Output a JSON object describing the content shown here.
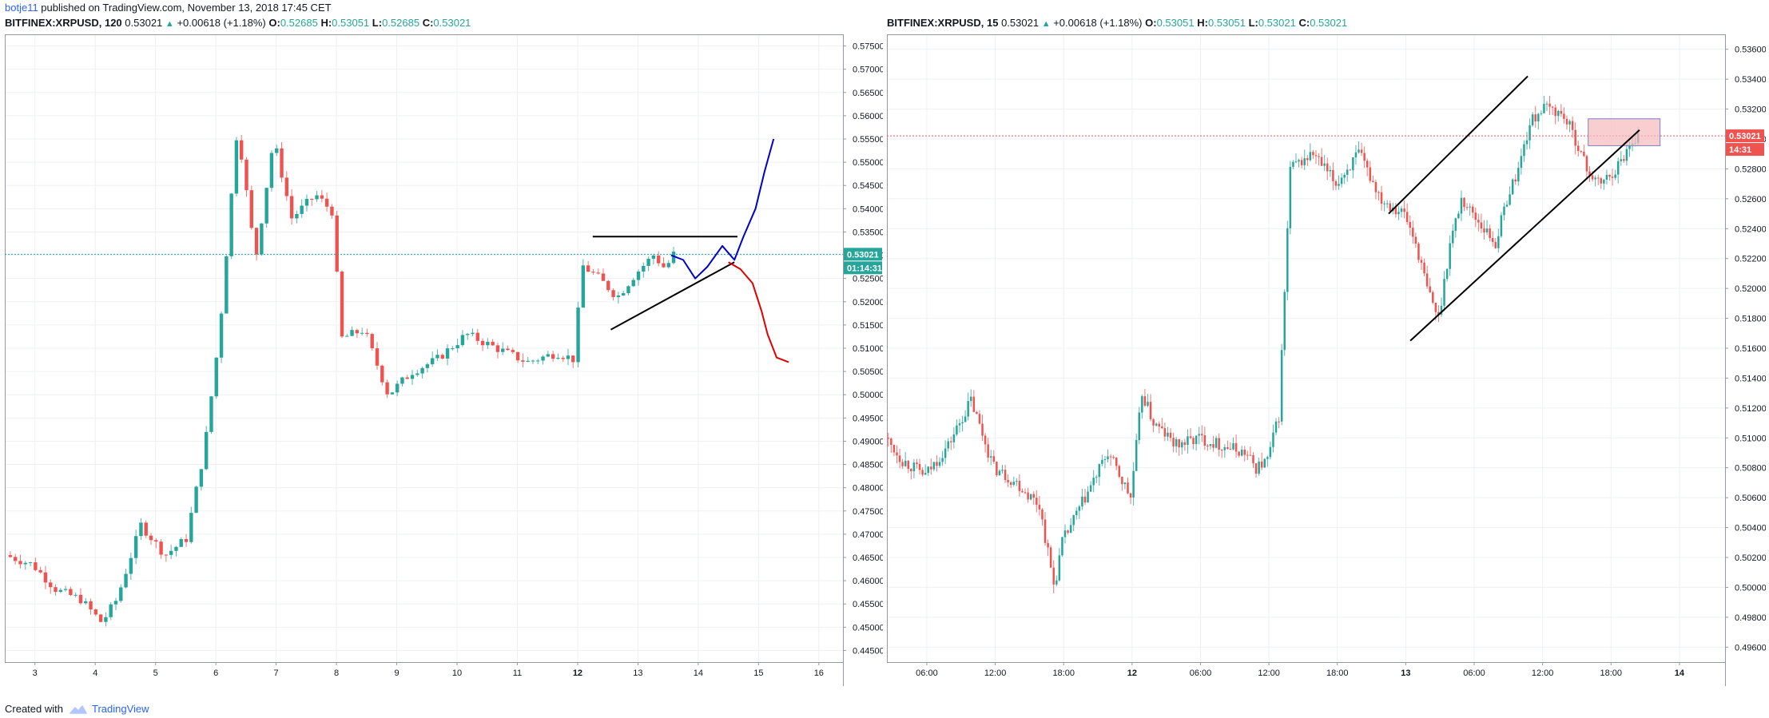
{
  "header": {
    "author": "botje11",
    "published_text": " published on TradingView.com, November 13, 2018 17:45 CET"
  },
  "panes": [
    {
      "symbol": "BITFINEX:XRPUSD",
      "interval": "120",
      "last": "0.53021",
      "change": "+0.00618 (+1.18%)",
      "open": "0.52685",
      "high": "0.53051",
      "low": "0.52685",
      "close": "0.53021",
      "price_tag": "0.53021",
      "countdown": "01:14:31"
    },
    {
      "symbol": "BITFINEX:XRPUSD",
      "interval": "15",
      "last": "0.53021",
      "change": "+0.00618 (+1.18%)",
      "open": "0.53051",
      "high": "0.53051",
      "low": "0.53021",
      "close": "0.53021",
      "price_tag": "0.53021",
      "countdown": "14:31"
    }
  ],
  "footer": {
    "created_with": "Created with",
    "brand": "TradingView"
  },
  "colors": {
    "up": "#26a69a",
    "down": "#ef5350",
    "grid": "#eef0f3",
    "price_line_left": "#26a69a",
    "price_line_right": "#ef5350",
    "projection_up": "#0000cc",
    "projection_down": "#e00000",
    "trendline": "#000000",
    "box_fill": "#f7b9bc",
    "box_border": "#7b7fd0"
  },
  "chart_data": [
    {
      "type": "candlestick",
      "title": "BITFINEX:XRPUSD, 120",
      "x_ticks": [
        "3",
        "4",
        "5",
        "6",
        "7",
        "8",
        "9",
        "10",
        "11",
        "12",
        "13",
        "14",
        "15",
        "16"
      ],
      "x_tick_days": [
        3,
        4,
        5,
        6,
        7,
        8,
        9,
        10,
        11,
        12,
        13,
        14,
        15,
        16
      ],
      "x_range_days": [
        2.5,
        16.4
      ],
      "y_ticks": [
        "0.57500",
        "0.57000",
        "0.56500",
        "0.56000",
        "0.55500",
        "0.55000",
        "0.54500",
        "0.54000",
        "0.53500",
        "0.53000",
        "0.52500",
        "0.52000",
        "0.51500",
        "0.51000",
        "0.50500",
        "0.50000",
        "0.49500",
        "0.49000",
        "0.48500",
        "0.48000",
        "0.47500",
        "0.47000",
        "0.46500",
        "0.46000",
        "0.45500",
        "0.45000",
        "0.44500"
      ],
      "ylim": [
        0.4425,
        0.5775
      ],
      "current_price": 0.53021,
      "series_close_by_day": {
        "days": [
          2.55,
          3.0,
          3.4,
          3.8,
          4.15,
          4.4,
          4.8,
          5.2,
          5.55,
          5.85,
          6.1,
          6.4,
          6.7,
          7.0,
          7.3,
          7.7,
          8.0,
          8.1,
          8.5,
          8.9,
          9.3,
          9.7,
          10.2,
          10.7,
          11.2,
          11.7,
          12.0,
          12.1,
          12.4,
          12.7,
          13.0,
          13.3,
          13.5,
          13.62
        ],
        "close": [
          0.4655,
          0.4635,
          0.458,
          0.456,
          0.451,
          0.456,
          0.472,
          0.4655,
          0.469,
          0.488,
          0.513,
          0.558,
          0.529,
          0.555,
          0.538,
          0.543,
          0.539,
          0.512,
          0.514,
          0.5,
          0.505,
          0.5075,
          0.513,
          0.51,
          0.507,
          0.509,
          0.5075,
          0.528,
          0.525,
          0.521,
          0.526,
          0.53,
          0.527,
          0.5302
        ]
      },
      "annotations": {
        "horizontal_line": {
          "x_days": [
            12.25,
            14.65
          ],
          "y": 0.534
        },
        "rising_trendline": {
          "x_days": [
            12.55,
            14.6
          ],
          "y": [
            0.514,
            0.5285
          ]
        },
        "bullish_projection": {
          "x_days": [
            13.55,
            13.75,
            13.95,
            14.15,
            14.4,
            14.6,
            14.75,
            14.95,
            15.1,
            15.25
          ],
          "y": [
            0.53,
            0.529,
            0.525,
            0.5275,
            0.532,
            0.529,
            0.534,
            0.54,
            0.548,
            0.555
          ]
        },
        "bearish_projection": {
          "x_days": [
            14.5,
            14.7,
            14.9,
            15.05,
            15.15,
            15.3,
            15.5
          ],
          "y": [
            0.5285,
            0.527,
            0.524,
            0.518,
            0.513,
            0.508,
            0.507
          ]
        }
      }
    },
    {
      "type": "candlestick",
      "title": "BITFINEX:XRPUSD, 15",
      "x_ticks": [
        "06:00",
        "12:00",
        "18:00",
        "12",
        "06:00",
        "12:00",
        "18:00",
        "13",
        "06:00",
        "12:00",
        "18:00",
        "14"
      ],
      "x_tick_hours": [
        6,
        12,
        18,
        24,
        30,
        36,
        42,
        48,
        54,
        60,
        66,
        72
      ],
      "x_range_hours": [
        2.5,
        76
      ],
      "y_ticks": [
        "0.53600",
        "0.53400",
        "0.53200",
        "0.53000",
        "0.52800",
        "0.52600",
        "0.52400",
        "0.52200",
        "0.52000",
        "0.51800",
        "0.51600",
        "0.51400",
        "0.51200",
        "0.51000",
        "0.50800",
        "0.50600",
        "0.50400",
        "0.50200",
        "0.50000",
        "0.49800",
        "0.49600"
      ],
      "ylim": [
        0.495,
        0.537
      ],
      "current_price": 0.53021,
      "series_close_by_hour": {
        "hours": [
          2.5,
          4,
          6,
          8,
          10,
          12,
          14,
          16,
          17.3,
          18,
          20,
          22,
          24,
          25,
          26,
          28,
          30,
          32,
          34,
          35,
          36,
          37,
          38,
          40,
          42,
          44,
          46,
          48,
          49,
          50,
          51,
          52,
          53,
          54,
          55,
          56,
          57,
          58,
          59,
          60,
          61,
          62,
          63,
          64,
          65,
          66,
          67,
          68,
          68.5
        ],
        "close": [
          0.51,
          0.5085,
          0.5075,
          0.5095,
          0.5125,
          0.508,
          0.507,
          0.5055,
          0.5,
          0.503,
          0.506,
          0.509,
          0.506,
          0.513,
          0.511,
          0.5095,
          0.51,
          0.5095,
          0.509,
          0.508,
          0.5085,
          0.5115,
          0.528,
          0.529,
          0.527,
          0.529,
          0.526,
          0.525,
          0.523,
          0.52,
          0.518,
          0.523,
          0.526,
          0.525,
          0.524,
          0.523,
          0.526,
          0.528,
          0.531,
          0.532,
          0.532,
          0.5315,
          0.53,
          0.528,
          0.527,
          0.5275,
          0.5285,
          0.53,
          0.5302
        ]
      },
      "annotations": {
        "upper_channel_line": {
          "x_hours": [
            46.5,
            58.7
          ],
          "y": [
            0.525,
            0.5342
          ]
        },
        "lower_channel_line": {
          "x_hours": [
            48.4,
            68.5
          ],
          "y": [
            0.5165,
            0.5306
          ]
        },
        "rectangle": {
          "x_hours": [
            64,
            70.3
          ],
          "y": [
            0.53135,
            0.52955
          ]
        }
      }
    }
  ]
}
